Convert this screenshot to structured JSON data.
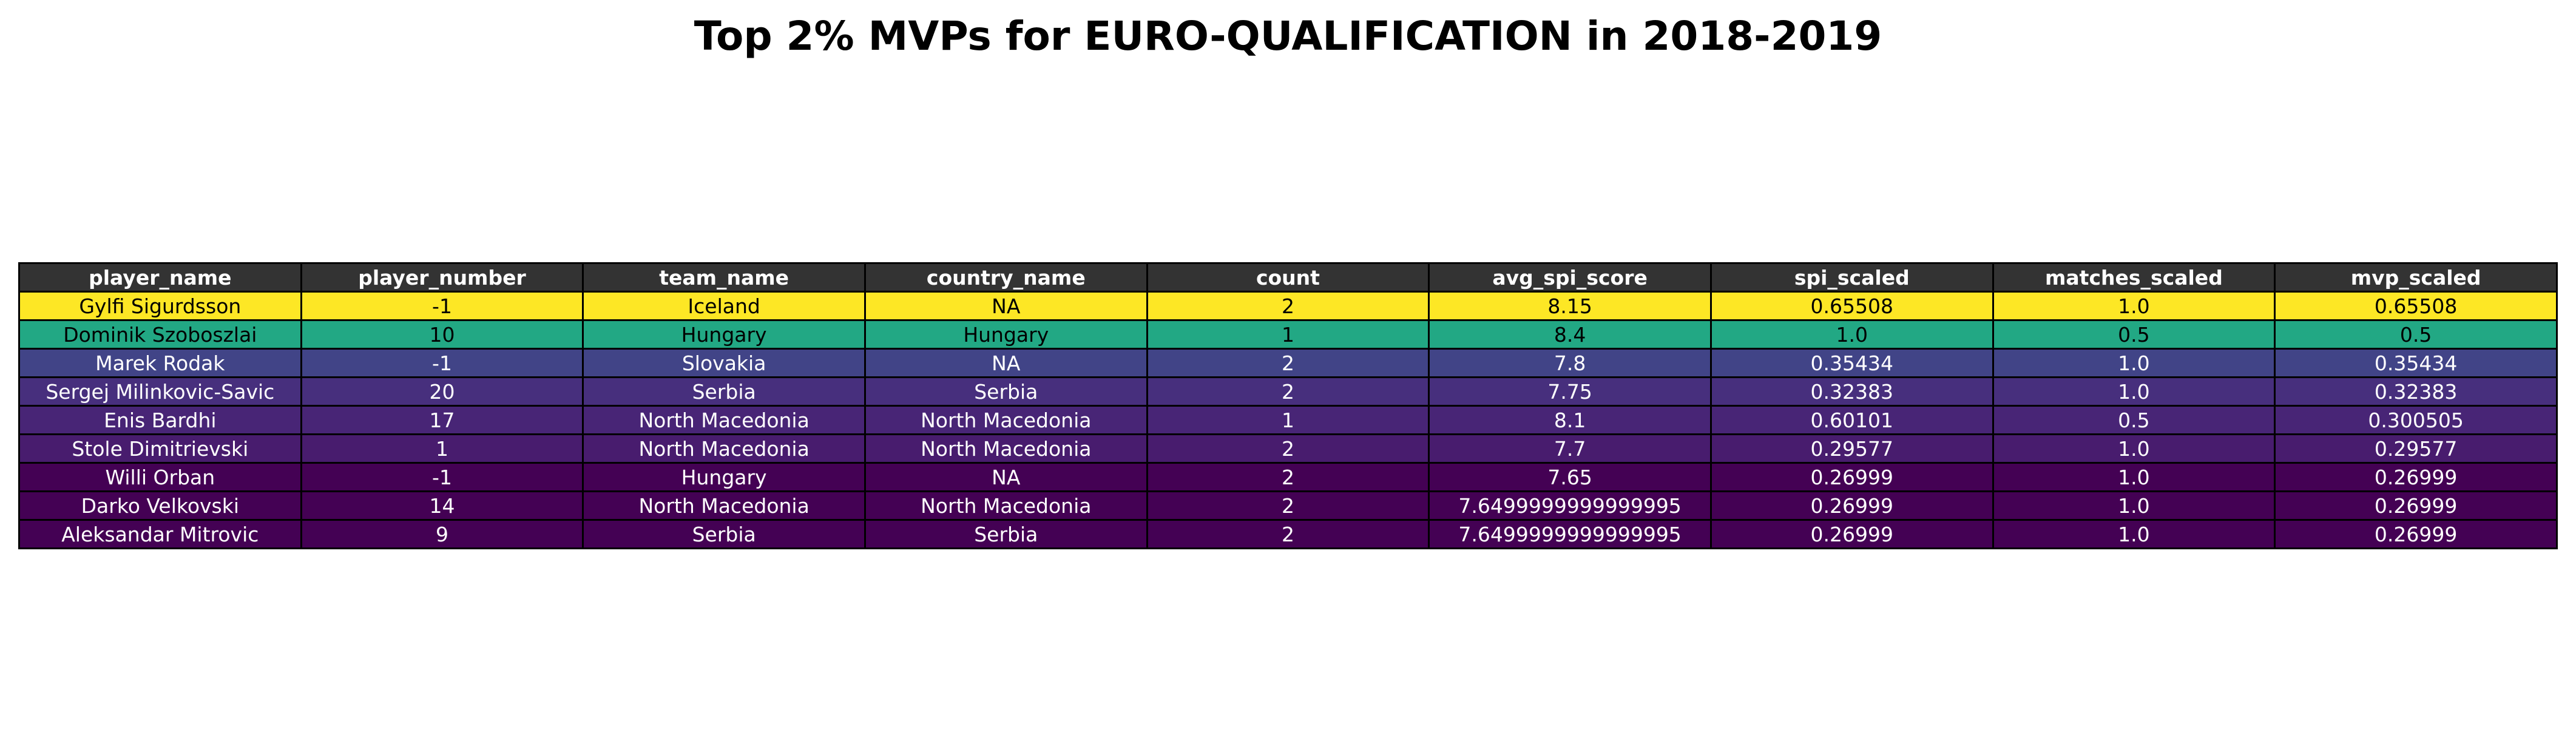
{
  "chart_data": {
    "type": "table",
    "title": "Top 2% MVPs for EURO-QUALIFICATION in 2018-2019",
    "header_color": "#333333",
    "columns": [
      "player_name",
      "player_number",
      "team_name",
      "country_name",
      "count",
      "avg_spi_score",
      "spi_scaled",
      "matches_scaled",
      "mvp_scaled"
    ],
    "rows": [
      {
        "cells": [
          "Gylfi Sigurdsson",
          "-1",
          "Iceland",
          "NA",
          "2",
          "8.15",
          "0.65508",
          "1.0",
          "0.65508"
        ],
        "bg": "#fde725",
        "fg": "#000000"
      },
      {
        "cells": [
          "Dominik Szoboszlai",
          "10",
          "Hungary",
          "Hungary",
          "1",
          "8.4",
          "1.0",
          "0.5",
          "0.5"
        ],
        "bg": "#22a884",
        "fg": "#000000"
      },
      {
        "cells": [
          "Marek Rodak",
          "-1",
          "Slovakia",
          "NA",
          "2",
          "7.8",
          "0.35434",
          "1.0",
          "0.35434"
        ],
        "bg": "#414487",
        "fg": "#ffffff"
      },
      {
        "cells": [
          "Sergej Milinkovic-Savic",
          "20",
          "Serbia",
          "Serbia",
          "2",
          "7.75",
          "0.32383",
          "1.0",
          "0.32383"
        ],
        "bg": "#472f7d",
        "fg": "#ffffff"
      },
      {
        "cells": [
          "Enis Bardhi",
          "17",
          "North Macedonia",
          "North Macedonia",
          "1",
          "8.1",
          "0.60101",
          "0.5",
          "0.300505"
        ],
        "bg": "#482576",
        "fg": "#ffffff"
      },
      {
        "cells": [
          "Stole Dimitrievski",
          "1",
          "North Macedonia",
          "North Macedonia",
          "2",
          "7.7",
          "0.29577",
          "1.0",
          "0.29577"
        ],
        "bg": "#481c6e",
        "fg": "#ffffff"
      },
      {
        "cells": [
          "Willi Orban",
          "-1",
          "Hungary",
          "NA",
          "2",
          "7.65",
          "0.26999",
          "1.0",
          "0.26999"
        ],
        "bg": "#440154",
        "fg": "#ffffff"
      },
      {
        "cells": [
          "Darko Velkovski",
          "14",
          "North Macedonia",
          "North Macedonia",
          "2",
          "7.6499999999999995",
          "0.26999",
          "1.0",
          "0.26999"
        ],
        "bg": "#440154",
        "fg": "#ffffff"
      },
      {
        "cells": [
          "Aleksandar Mitrovic",
          "9",
          "Serbia",
          "Serbia",
          "2",
          "7.6499999999999995",
          "0.26999",
          "1.0",
          "0.26999"
        ],
        "bg": "#440154",
        "fg": "#ffffff"
      }
    ]
  }
}
